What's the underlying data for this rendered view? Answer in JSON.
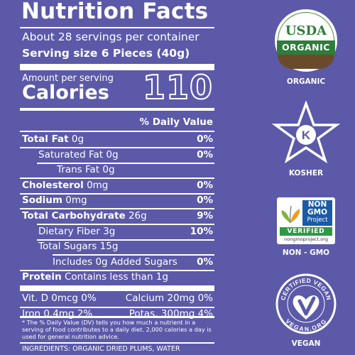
{
  "panel": {
    "title": "Nutrition Facts",
    "servings": "About 28 servings per container",
    "serving_size": "Serving size 6 Pieces (40g)",
    "amount_per_serving": "Amount per serving",
    "calories_label": "Calories",
    "calories_value": "110",
    "dv_header": "% Daily Value",
    "rows": [
      {
        "bold": "Total Fat",
        "text": " 0g",
        "pct": "0%"
      },
      {
        "bold": "",
        "text": "Saturated Fat 0g",
        "pct": "0%"
      },
      {
        "bold": "",
        "text": "Trans Fat 0g",
        "pct": ""
      },
      {
        "bold": "Cholesterol",
        "text": " 0mg",
        "pct": "0%"
      },
      {
        "bold": "Sodium",
        "text": " 0mg",
        "pct": "0%"
      },
      {
        "bold": "Total Carbohydrate",
        "text": " 26g",
        "pct": "9%"
      },
      {
        "bold": "",
        "text": "Dietary Fiber 3g",
        "pct": "10%"
      },
      {
        "bold": "",
        "text": "Total Sugars 15g",
        "pct": ""
      },
      {
        "bold": "",
        "text": "Includes 0g Added Sugars",
        "pct": "0%"
      },
      {
        "bold": "Protein",
        "text": " Contains less than 1g",
        "pct": ""
      }
    ],
    "vitamins": {
      "vit_d": "Vit. D 0mcg 0%",
      "calcium": "Calcium 20mg 0%",
      "iron": "Iron 0.4mg 2%",
      "potassium": "Potas. 300mg 4%"
    },
    "footnote": "* The % Daily Value (DV) tells you how much a nutrient in a serving of food contributes to a daily diet. 2,000 calories a day is used for general nutrition advice.",
    "ingredients": "INGREDIENTS: ORGANIC DRIED PLUMS, WATER"
  },
  "badges": {
    "usda": {
      "top": "USDA",
      "band": "ORGANIC",
      "label": "ORGANIC"
    },
    "kosher": {
      "letter": "K",
      "label": "KOSHER"
    },
    "nongmo": {
      "line1": "NON",
      "line2": "GMO",
      "line3": "Project",
      "verified": "VERIFIED",
      "url": "nongmoproject.org",
      "label": "NON - GMO"
    },
    "vegan": {
      "ring_top": "CERTIFIED VEGAN",
      "ring_bottom": "VEGAN.ORG",
      "label": "VEGAN"
    }
  },
  "colors": {
    "background": "#5b59a8",
    "usda_green": "#2f7d3a",
    "usda_brown": "#6b4a2b",
    "nongmo_blue": "#1a5aa6",
    "nongmo_green": "#2e9a46"
  }
}
